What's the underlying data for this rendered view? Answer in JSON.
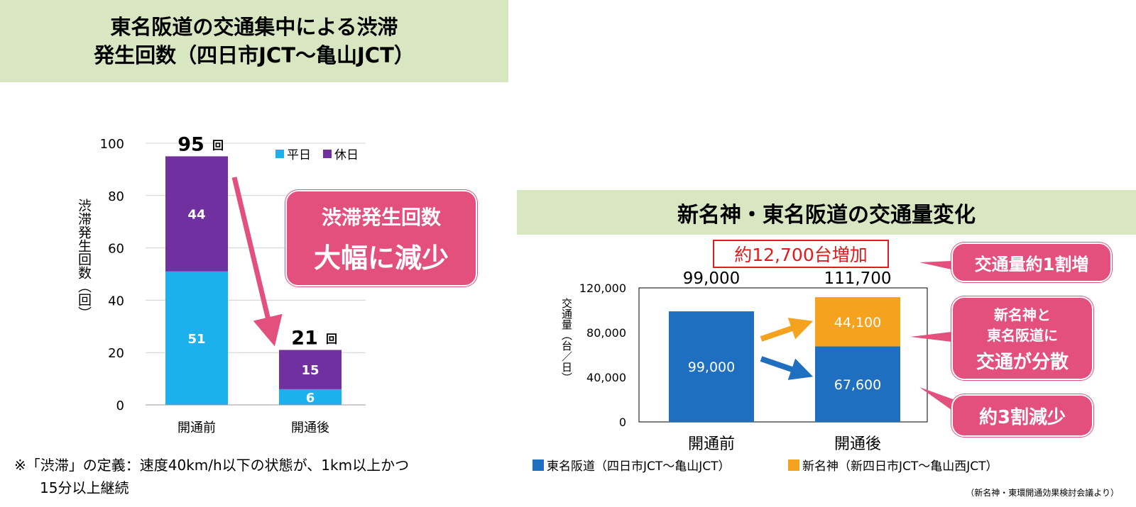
{
  "left_panel": {
    "title_line1": "東名阪道の交通集中による渋滞",
    "title_line2": "発生回数（四日市JCT～亀山JCT）",
    "callout_line1": "渋滞発生回数",
    "callout_line2": "大幅に減少",
    "footnote_line1": "※「渋滞」の定義：速度40km/h以下の状態が、1km以上かつ",
    "footnote_line2": "15分以上継続"
  },
  "right_panel": {
    "title": "新名神・東名阪道の交通量変化",
    "increase_label": "約12,700台増加",
    "callout_top": "交通量約1割増",
    "callout_mid_line1": "新名神と",
    "callout_mid_line2": "東名阪道に",
    "callout_mid_line3": "交通が分散",
    "callout_bottom": "約3割減少",
    "source": "（新名神・東環開通効果検討会議より）"
  },
  "colors": {
    "weekday": "#1cb0ec",
    "holiday": "#7030a0",
    "tomei": "#1f6fc1",
    "shinmeishin": "#f5a21e",
    "callout": "#e4507e",
    "title_bg": "#d8e7c2"
  },
  "chart_data": [
    {
      "type": "bar",
      "stacked": true,
      "categories": [
        "開通前",
        "開通後"
      ],
      "series": [
        {
          "name": "平日",
          "values": [
            51,
            6
          ]
        },
        {
          "name": "休日",
          "values": [
            44,
            15
          ]
        }
      ],
      "totals": [
        95,
        21
      ],
      "total_labels": [
        "95",
        "21"
      ],
      "total_unit": "回",
      "ylabel": "渋滞発生回数（回）",
      "ylim": [
        0,
        100
      ],
      "yticks": [
        0,
        20,
        40,
        60,
        80,
        100
      ],
      "legend_position": "top-right",
      "grid": true
    },
    {
      "type": "bar",
      "stacked": true,
      "categories": [
        "開通前",
        "開通後"
      ],
      "series": [
        {
          "name": "東名阪道（四日市JCT～亀山JCT）",
          "values": [
            99000,
            67600
          ],
          "labels": [
            "99,000",
            "67,600"
          ]
        },
        {
          "name": "新名神（新四日市JCT～亀山西JCT）",
          "values": [
            0,
            44100
          ],
          "labels": [
            "",
            "44,100"
          ]
        }
      ],
      "totals": [
        99000,
        111700
      ],
      "total_labels": [
        "99,000",
        "111,700"
      ],
      "ylabel": "交通量（台／日）",
      "ylim": [
        0,
        120000
      ],
      "yticks": [
        0,
        40000,
        80000,
        120000
      ],
      "ytick_labels": [
        "0",
        "40,000",
        "80,000",
        "120,000"
      ],
      "legend_position": "bottom",
      "grid": false
    }
  ]
}
